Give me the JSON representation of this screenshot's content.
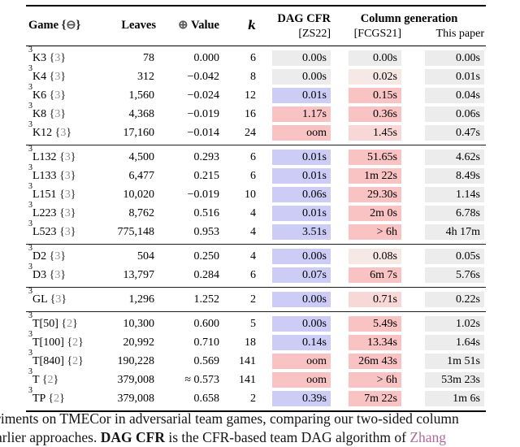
{
  "palette": {
    "best_time_blue": "#ccccf6",
    "slow_time_pink": "#f9c3c3",
    "slow_time_pink_light": "#f8d7d7",
    "slow_time_pink_xlight": "#f6e8e5",
    "neutral_gray": "#ececec",
    "citation_color": "#b06a9a"
  },
  "table": {
    "header": {
      "game_label": "Game",
      "game_brace_open": "{",
      "game_set_symbol": "⊖",
      "game_brace_close": "}",
      "leaves": "Leaves",
      "value_symbol": "⊕",
      "value_label": "Value",
      "k": "k",
      "dag_cfr": "DAG CFR",
      "dag_cfr_cite": "[ZS22]",
      "column_generation": "Column generation",
      "fcgs_cite": "[FCGS21]",
      "this_paper": "This paper"
    },
    "groups": [
      {
        "rows": [
          {
            "sup": "3",
            "game": "K3",
            "set": "3",
            "leaves": "78",
            "value": "0.000",
            "k": "6",
            "dag": {
              "text": "0.00s",
              "tone": "gray"
            },
            "fcgs": {
              "text": "0.00s",
              "tone": "gray"
            },
            "paper": {
              "text": "0.00s",
              "tone": "gray"
            }
          },
          {
            "sup": "3",
            "game": "K4",
            "set": "3",
            "leaves": "312",
            "value": "−0.042",
            "k": "8",
            "dag": {
              "text": "0.00s",
              "tone": "gray"
            },
            "fcgs": {
              "text": "0.02s",
              "tone": "pink3"
            },
            "paper": {
              "text": "0.01s",
              "tone": "gray"
            }
          },
          {
            "sup": "3",
            "game": "K6",
            "set": "3",
            "leaves": "1,560",
            "value": "−0.024",
            "k": "12",
            "dag": {
              "text": "0.01s",
              "tone": "blue"
            },
            "fcgs": {
              "text": "0.15s",
              "tone": "pink"
            },
            "paper": {
              "text": "0.04s",
              "tone": "gray"
            }
          },
          {
            "sup": "3",
            "game": "K8",
            "set": "3",
            "leaves": "4,368",
            "value": "−0.019",
            "k": "16",
            "dag": {
              "text": "1.17s",
              "tone": "pink"
            },
            "fcgs": {
              "text": "0.36s",
              "tone": "pink"
            },
            "paper": {
              "text": "0.06s",
              "tone": "gray"
            }
          },
          {
            "sup": "3",
            "game": "K12",
            "set": "3",
            "leaves": "17,160",
            "value": "−0.014",
            "k": "24",
            "dag": {
              "text": "oom",
              "tone": "pink"
            },
            "fcgs": {
              "text": "1.45s",
              "tone": "pink2"
            },
            "paper": {
              "text": "0.47s",
              "tone": "gray"
            }
          }
        ]
      },
      {
        "rows": [
          {
            "sup": "3",
            "game": "L132",
            "set": "3",
            "leaves": "4,500",
            "value": "0.293",
            "k": "6",
            "dag": {
              "text": "0.01s",
              "tone": "blue"
            },
            "fcgs": {
              "text": "51.65s",
              "tone": "pink"
            },
            "paper": {
              "text": "4.62s",
              "tone": "gray"
            }
          },
          {
            "sup": "3",
            "game": "L133",
            "set": "3",
            "leaves": "6,477",
            "value": "0.215",
            "k": "6",
            "dag": {
              "text": "0.01s",
              "tone": "blue"
            },
            "fcgs": {
              "text": "1m 22s",
              "tone": "pink"
            },
            "paper": {
              "text": "8.49s",
              "tone": "gray"
            }
          },
          {
            "sup": "3",
            "game": "L151",
            "set": "3",
            "leaves": "10,020",
            "value": "−0.019",
            "k": "10",
            "dag": {
              "text": "0.06s",
              "tone": "blue"
            },
            "fcgs": {
              "text": "29.30s",
              "tone": "pink"
            },
            "paper": {
              "text": "1.14s",
              "tone": "gray"
            }
          },
          {
            "sup": "3",
            "game": "L223",
            "set": "3",
            "leaves": "8,762",
            "value": "0.516",
            "k": "4",
            "dag": {
              "text": "0.01s",
              "tone": "blue"
            },
            "fcgs": {
              "text": "2m 0s",
              "tone": "pink"
            },
            "paper": {
              "text": "6.78s",
              "tone": "gray"
            }
          },
          {
            "sup": "3",
            "game": "L523",
            "set": "3",
            "leaves": "775,148",
            "value": "0.953",
            "k": "4",
            "dag": {
              "text": "3.51s",
              "tone": "blue"
            },
            "fcgs": {
              "text": "> 6h",
              "tone": "pink"
            },
            "paper": {
              "text": "4h 17m",
              "tone": "gray"
            }
          }
        ]
      },
      {
        "rows": [
          {
            "sup": "3",
            "game": "D2",
            "set": "3",
            "leaves": "504",
            "value": "0.250",
            "k": "4",
            "dag": {
              "text": "0.00s",
              "tone": "blue"
            },
            "fcgs": {
              "text": "0.08s",
              "tone": "pink3"
            },
            "paper": {
              "text": "0.05s",
              "tone": "gray"
            }
          },
          {
            "sup": "3",
            "game": "D3",
            "set": "3",
            "leaves": "13,797",
            "value": "0.284",
            "k": "6",
            "dag": {
              "text": "0.07s",
              "tone": "blue"
            },
            "fcgs": {
              "text": "6m 7s",
              "tone": "pink"
            },
            "paper": {
              "text": "5.76s",
              "tone": "gray"
            }
          }
        ]
      },
      {
        "rows": [
          {
            "sup": "3",
            "game": "GL",
            "set": "3",
            "leaves": "1,296",
            "value": "1.252",
            "k": "2",
            "dag": {
              "text": "0.00s",
              "tone": "blue"
            },
            "fcgs": {
              "text": "0.71s",
              "tone": "pink2"
            },
            "paper": {
              "text": "0.22s",
              "tone": "gray"
            }
          }
        ]
      },
      {
        "rows": [
          {
            "sup": "3",
            "game": "T[50]",
            "set": "2",
            "leaves": "10,300",
            "value": "0.600",
            "k": "5",
            "dag": {
              "text": "0.00s",
              "tone": "blue"
            },
            "fcgs": {
              "text": "5.49s",
              "tone": "pink"
            },
            "paper": {
              "text": "1.02s",
              "tone": "gray"
            }
          },
          {
            "sup": "3",
            "game": "T[100]",
            "set": "2",
            "leaves": "20,992",
            "value": "0.710",
            "k": "18",
            "dag": {
              "text": "0.14s",
              "tone": "blue"
            },
            "fcgs": {
              "text": "13.34s",
              "tone": "pink"
            },
            "paper": {
              "text": "1.64s",
              "tone": "gray"
            }
          },
          {
            "sup": "3",
            "game": "T[840]",
            "set": "2",
            "leaves": "190,228",
            "value": "0.569",
            "k": "141",
            "dag": {
              "text": "oom",
              "tone": "pink"
            },
            "fcgs": {
              "text": "26m 43s",
              "tone": "pink"
            },
            "paper": {
              "text": "1m 51s",
              "tone": "gray"
            }
          },
          {
            "sup": "3",
            "game": "T",
            "set": "2",
            "leaves": "379,008",
            "value": "≈ 0.573",
            "k": "141",
            "dag": {
              "text": "oom",
              "tone": "pink"
            },
            "fcgs": {
              "text": "> 6h",
              "tone": "pink"
            },
            "paper": {
              "text": "53m 23s",
              "tone": "gray"
            }
          },
          {
            "sup": "3",
            "game": "TP",
            "set": "2",
            "leaves": "379,008",
            "value": "0.658",
            "k": "2",
            "dag": {
              "text": "0.39s",
              "tone": "blue"
            },
            "fcgs": {
              "text": "7m 22s",
              "tone": "pink"
            },
            "paper": {
              "text": "1m 6s",
              "tone": "gray"
            }
          }
        ]
      }
    ]
  },
  "caption": {
    "line1": "riments on TMECor in adversarial team games, comparing our two-sided column",
    "line2_pre": "arlier approaches. ",
    "line2_bold": "DAG CFR",
    "line2_mid": " is the CFR-based team DAG algorithm of ",
    "line2_cite": "Zhang"
  }
}
